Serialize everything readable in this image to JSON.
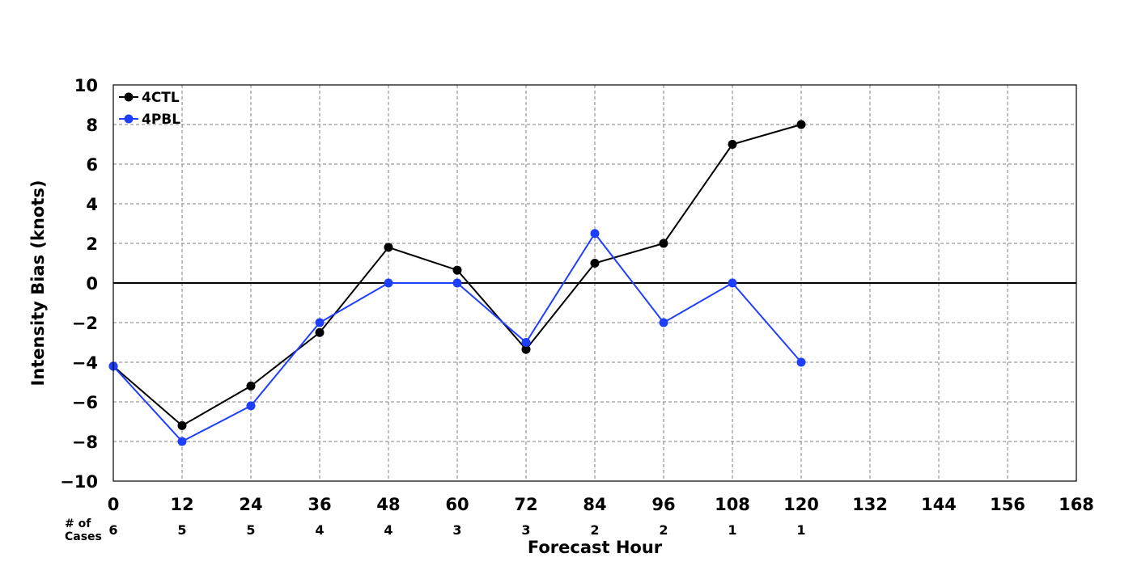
{
  "chart_data": {
    "type": "line",
    "title": "",
    "xlabel": "Forecast Hour",
    "ylabel": "Intensity Bias (knots)",
    "xlim": [
      0,
      168
    ],
    "ylim": [
      -10,
      10
    ],
    "x_ticks": [
      0,
      12,
      24,
      36,
      48,
      60,
      72,
      84,
      96,
      108,
      120,
      132,
      144,
      156,
      168
    ],
    "x_tick_labels": [
      "0",
      "12",
      "24",
      "36",
      "48",
      "60",
      "72",
      "84",
      "96",
      "108",
      "120",
      "132",
      "144",
      "156",
      "168"
    ],
    "y_ticks": [
      -10,
      -8,
      -6,
      -4,
      -2,
      0,
      2,
      4,
      6,
      8,
      10
    ],
    "y_tick_labels": [
      "−10",
      "−8",
      "−6",
      "−4",
      "−2",
      "0",
      "2",
      "4",
      "6",
      "8",
      "10"
    ],
    "grid": true,
    "legend_position": "top-left",
    "x": [
      0,
      12,
      24,
      36,
      48,
      60,
      72,
      84,
      96,
      108,
      120
    ],
    "series": [
      {
        "name": "4CTL",
        "color": "#000000",
        "values": [
          -4.2,
          -7.2,
          -5.2,
          -2.5,
          1.8,
          0.65,
          -3.35,
          1.0,
          2.0,
          7.0,
          8.0
        ]
      },
      {
        "name": "4PBL",
        "color": "#1f3fff",
        "values": [
          -4.2,
          -8.0,
          -6.2,
          -2.0,
          0.0,
          0.0,
          -3.0,
          2.5,
          -2.0,
          0.0,
          -4.0
        ]
      }
    ],
    "cases": {
      "label_line1": "# of",
      "label_line2": "Cases",
      "x": [
        0,
        12,
        24,
        36,
        48,
        60,
        72,
        84,
        96,
        108,
        120
      ],
      "values": [
        "6",
        "5",
        "5",
        "4",
        "4",
        "3",
        "3",
        "2",
        "2",
        "1",
        "1"
      ]
    }
  }
}
